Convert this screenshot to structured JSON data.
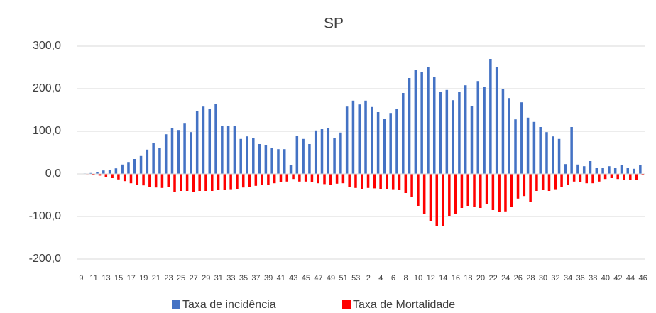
{
  "chart_data": {
    "type": "bar",
    "title": "SP",
    "categories": [
      "9",
      null,
      "11",
      null,
      "13",
      null,
      "15",
      null,
      "17",
      null,
      "19",
      null,
      "21",
      null,
      "23",
      null,
      "25",
      null,
      "27",
      null,
      "29",
      null,
      "31",
      null,
      "33",
      null,
      "35",
      null,
      "37",
      null,
      "39",
      null,
      "41",
      null,
      "43",
      null,
      "45",
      null,
      "47",
      null,
      "49",
      null,
      "51",
      null,
      "53",
      null,
      "2",
      null,
      "4",
      null,
      "6",
      null,
      "8",
      null,
      "10",
      null,
      "12",
      null,
      "14",
      null,
      "16",
      null,
      "18",
      null,
      "20",
      null,
      "22",
      null,
      "24",
      null,
      "26",
      null,
      "28",
      null,
      "30",
      null,
      "32",
      null,
      "34",
      null,
      "36",
      null,
      "38",
      null,
      "40",
      null,
      "42",
      null,
      "44",
      null,
      "46"
    ],
    "series": [
      {
        "name": "Taxa de incidência",
        "color": "#4472c4",
        "values": [
          0,
          1,
          2,
          5,
          8,
          10,
          13,
          22,
          28,
          35,
          42,
          57,
          72,
          60,
          93,
          108,
          103,
          118,
          98,
          147,
          158,
          152,
          165,
          112,
          113,
          112,
          82,
          88,
          85,
          70,
          68,
          60,
          58,
          58,
          20,
          90,
          82,
          70,
          102,
          105,
          108,
          85,
          97,
          158,
          172,
          163,
          172,
          157,
          145,
          130,
          143,
          153,
          190,
          225,
          245,
          240,
          250,
          228,
          193,
          197,
          173,
          193,
          208,
          160,
          218,
          205,
          270,
          250,
          200,
          178,
          128,
          168,
          132,
          122,
          110,
          98,
          88,
          82,
          23,
          110,
          22,
          18,
          30,
          14,
          15,
          18,
          15,
          20,
          15,
          12,
          20
        ]
      },
      {
        "name": "Taxa de Mortalidade",
        "color": "#ff0000",
        "values": [
          0,
          -1,
          -2,
          -4,
          -7,
          -10,
          -13,
          -17,
          -22,
          -25,
          -27,
          -30,
          -32,
          -33,
          -30,
          -42,
          -40,
          -40,
          -42,
          -40,
          -40,
          -40,
          -38,
          -38,
          -36,
          -35,
          -32,
          -30,
          -28,
          -25,
          -25,
          -22,
          -20,
          -18,
          -12,
          -18,
          -18,
          -20,
          -22,
          -24,
          -25,
          -23,
          -22,
          -30,
          -33,
          -35,
          -33,
          -34,
          -35,
          -35,
          -36,
          -38,
          -45,
          -55,
          -75,
          -95,
          -110,
          -122,
          -122,
          -100,
          -95,
          -80,
          -75,
          -78,
          -80,
          -70,
          -85,
          -90,
          -88,
          -78,
          -58,
          -52,
          -65,
          -40,
          -38,
          -40,
          -36,
          -30,
          -25,
          -18,
          -20,
          -22,
          -22,
          -18,
          -12,
          -10,
          -12,
          -15,
          -14,
          -14,
          -2
        ]
      }
    ],
    "ylim": [
      -200,
      300
    ],
    "yticks": [
      {
        "value": -200,
        "label": "-200,0"
      },
      {
        "value": -100,
        "label": "-100,0"
      },
      {
        "value": 0,
        "label": "0,0"
      },
      {
        "value": 100,
        "label": "100,0"
      },
      {
        "value": 200,
        "label": "200,0"
      },
      {
        "value": 300,
        "label": "300,0"
      }
    ],
    "grid": true,
    "legend": "bottom"
  }
}
